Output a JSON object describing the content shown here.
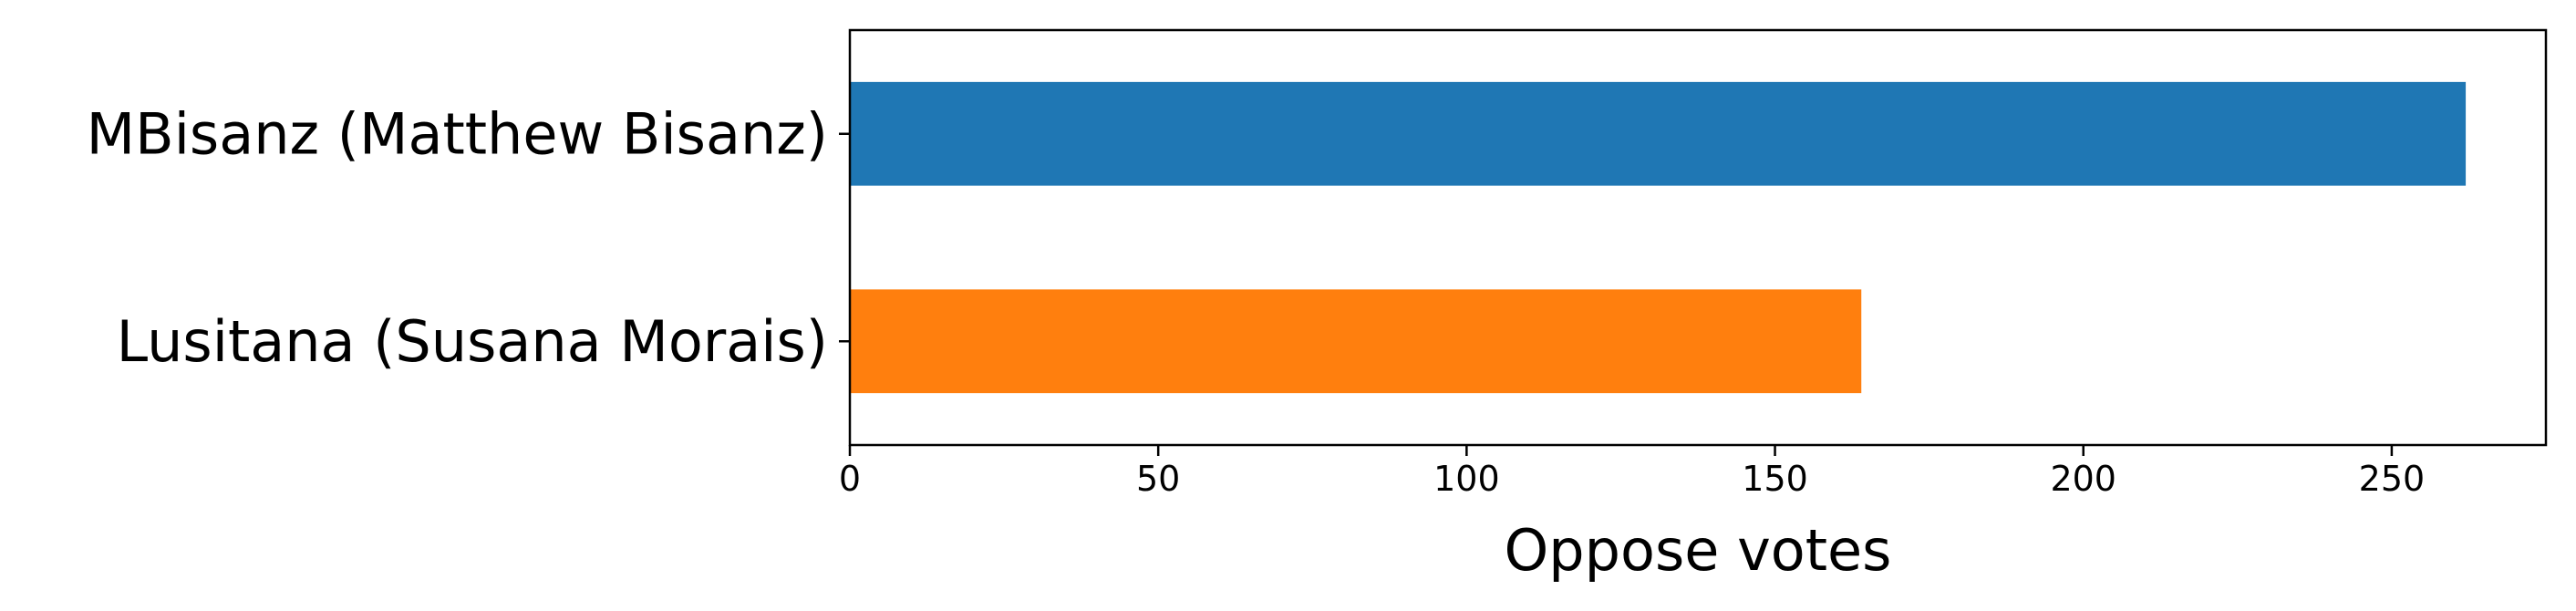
{
  "chart_data": {
    "type": "bar",
    "orientation": "horizontal",
    "categories": [
      "MBisanz (Matthew Bisanz)",
      "Lusitana (Susana Morais)"
    ],
    "values": [
      262,
      164
    ],
    "colors": [
      "#1f77b4",
      "#ff7f0e"
    ],
    "title": "",
    "xlabel": "Oppose votes",
    "ylabel": "",
    "xlim": [
      0,
      275
    ],
    "xticks": [
      0,
      50,
      100,
      150,
      200,
      250
    ],
    "grid": false,
    "legend": "none"
  }
}
